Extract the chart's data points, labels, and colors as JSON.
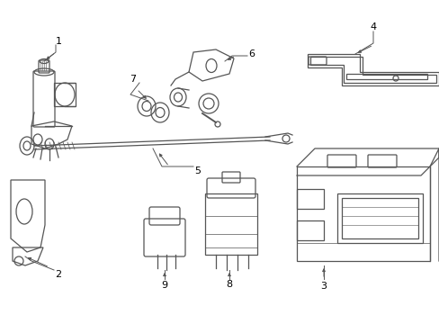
{
  "background_color": "#ffffff",
  "line_color": "#555555",
  "text_color": "#000000",
  "fig_width": 4.89,
  "fig_height": 3.6,
  "dpi": 100
}
